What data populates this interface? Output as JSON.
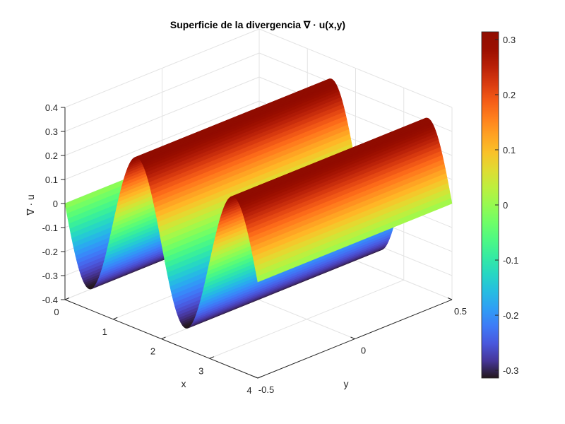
{
  "chart_data": {
    "type": "surface",
    "title": "Superficie de la divergencia ∇ · u(x,y)",
    "xlabel": "x",
    "ylabel": "y",
    "zlabel": "∇ · u",
    "function": "z = -0.1π·sin(πx), constant in y",
    "xlim": [
      0,
      4
    ],
    "ylim": [
      -0.5,
      0.5
    ],
    "zlim": [
      -0.4,
      0.4
    ],
    "x_ticks": [
      "0",
      "1",
      "2",
      "3",
      "4"
    ],
    "y_ticks": [
      "-0.5",
      "0",
      "0.5"
    ],
    "z_ticks": [
      "-0.4",
      "-0.3",
      "-0.2",
      "-0.1",
      "0",
      "0.1",
      "0.2",
      "0.3",
      "0.4"
    ],
    "x_samples": [
      0,
      0.25,
      0.5,
      0.75,
      1,
      1.25,
      1.5,
      1.75,
      2,
      2.25,
      2.5,
      2.75,
      3,
      3.25,
      3.5,
      3.75,
      4
    ],
    "z_samples": [
      0,
      -0.222,
      -0.314,
      -0.222,
      0,
      0.222,
      0.314,
      0.222,
      0,
      -0.222,
      -0.314,
      -0.222,
      0,
      0.222,
      0.314,
      0.222,
      0
    ],
    "colormap": "turbo",
    "clim": [
      -0.314,
      0.314
    ],
    "colorbar_ticks": [
      "0.3",
      "0.2",
      "0.1",
      "0",
      "-0.1",
      "-0.2",
      "-0.3"
    ],
    "grid": true,
    "view": "3d default (az -37.5, el 30)"
  }
}
